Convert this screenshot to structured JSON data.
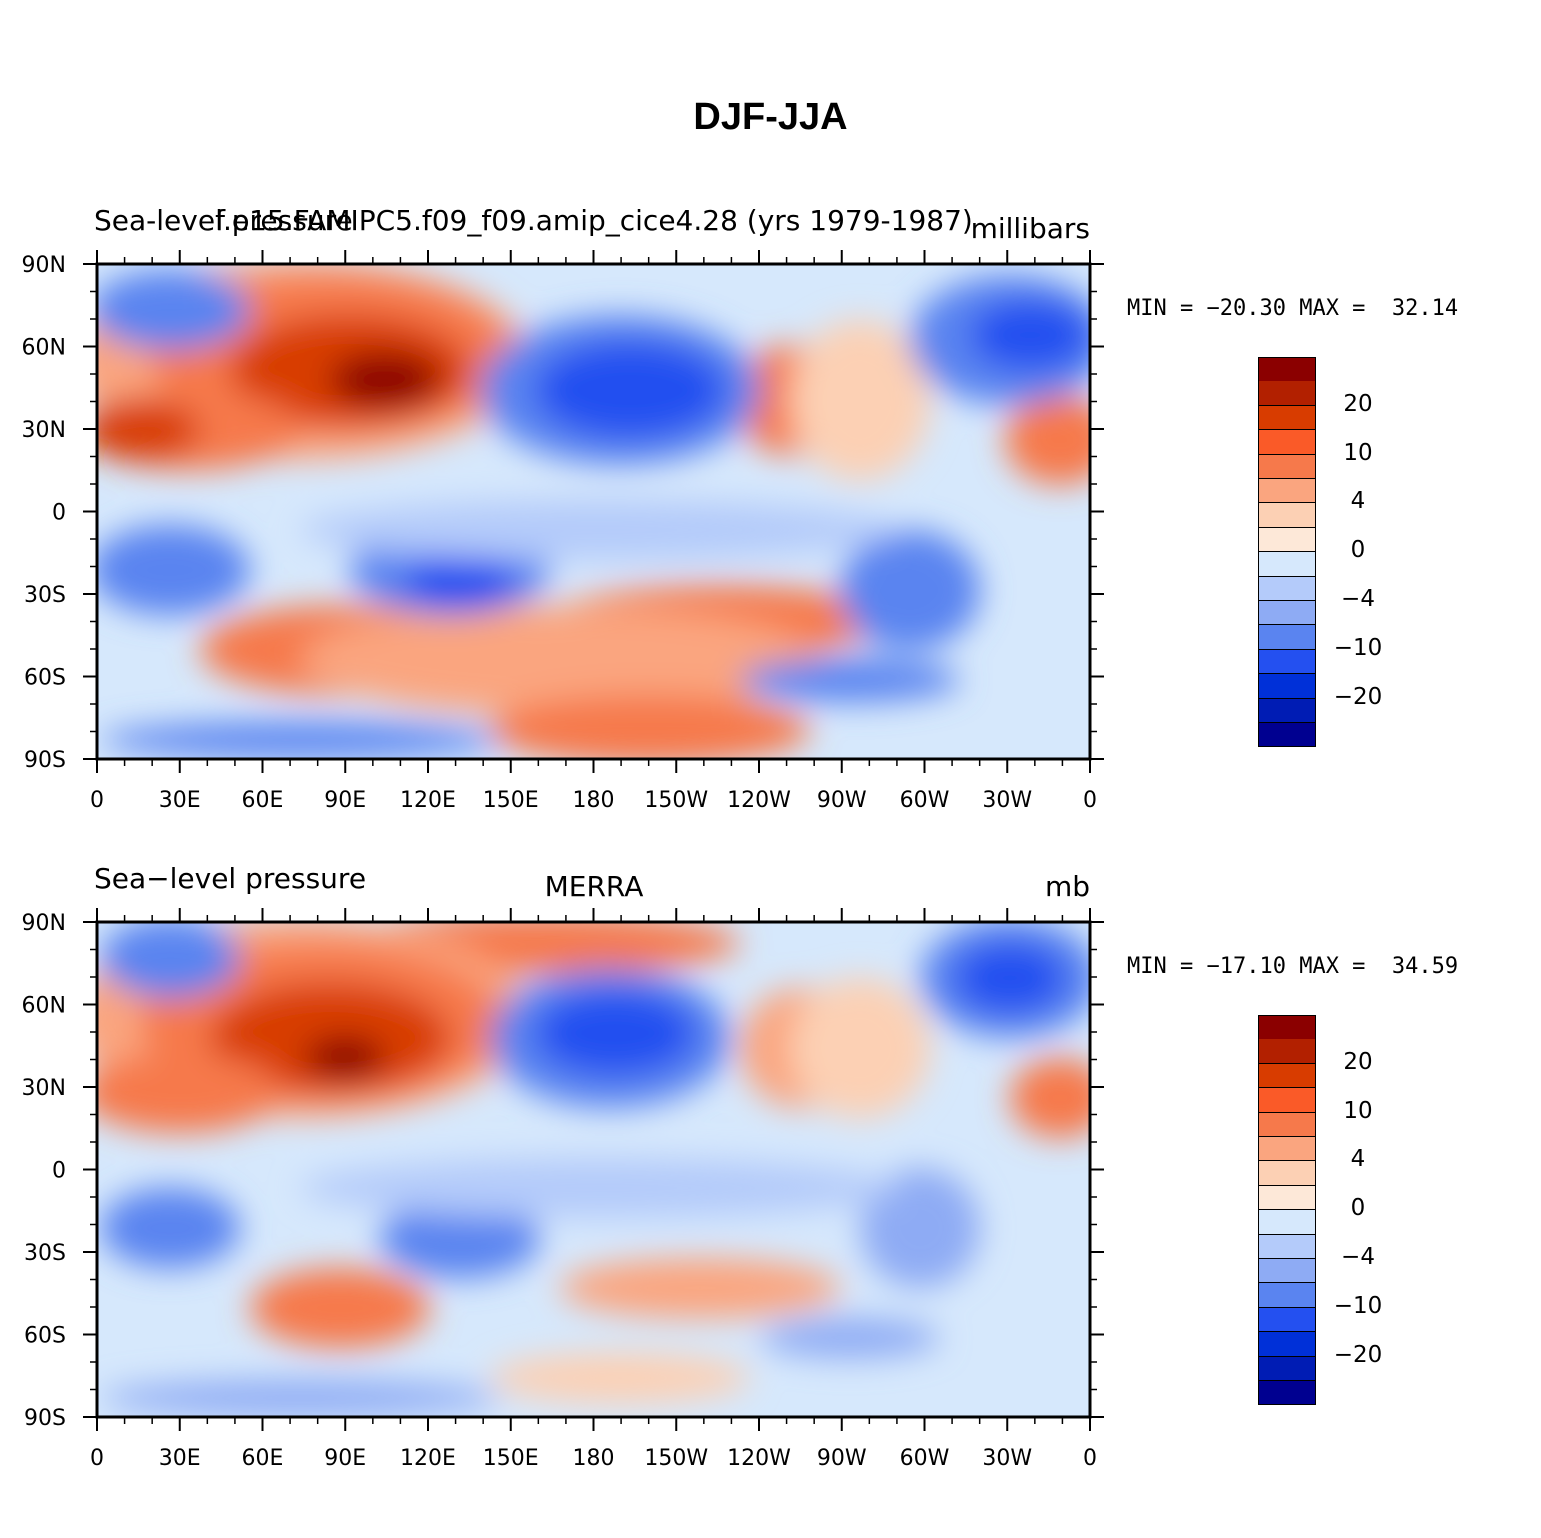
{
  "figure": {
    "title": "DJF-JJA"
  },
  "panels": [
    {
      "left_label": "Sea-level pressure",
      "center_label": "f.e15.FAMIPC5.f09_f09.amip_cice4.28 (yrs 1979-1987)",
      "right_label": "millibars",
      "min_label": "MIN = −20.30",
      "max_label": "MAX =  32.14"
    },
    {
      "left_label": "Sea−level pressure",
      "center_label": "MERRA",
      "right_label": "mb",
      "min_label": "MIN = −17.10",
      "max_label": "MAX =  34.59"
    }
  ],
  "axes": {
    "lat_ticks": [
      "90N",
      "60N",
      "30N",
      "0",
      "30S",
      "60S",
      "90S"
    ],
    "lon_ticks": [
      "0",
      "30E",
      "60E",
      "90E",
      "120E",
      "150E",
      "180",
      "150W",
      "120W",
      "90W",
      "60W",
      "30W",
      "0"
    ]
  },
  "colorbar": {
    "colors": [
      "#8b0000",
      "#b22000",
      "#d83c00",
      "#fa5a28",
      "#f6794b",
      "#faa57f",
      "#fcd0b4",
      "#fde8d8",
      "#d6e8fc",
      "#b4cbfa",
      "#8eabf4",
      "#5a84f0",
      "#2450f0",
      "#0030d8",
      "#001cb4",
      "#000090"
    ],
    "tick_labels": [
      "20",
      "10",
      "4",
      "0",
      "−4",
      "−10",
      "−20"
    ]
  },
  "chart_data": [
    {
      "type": "heatmap",
      "variable": "Sea-level pressure",
      "units": "millibars",
      "source": "f.e15.FAMIPC5.f09_f09.amip_cice4.28 (yrs 1979-1987)",
      "season_difference": "DJF-JJA",
      "xlim": [
        0,
        360
      ],
      "ylim": [
        -90,
        90
      ],
      "min": -20.3,
      "max": 32.14,
      "contour_levels": [
        -30,
        -25,
        -20,
        -15,
        -10,
        -7,
        -4,
        -2,
        0,
        2,
        4,
        7,
        10,
        15,
        20,
        25
      ]
    },
    {
      "type": "heatmap",
      "variable": "Sea-level pressure",
      "units": "mb",
      "source": "MERRA",
      "season_difference": "DJF-JJA",
      "xlim": [
        0,
        360
      ],
      "ylim": [
        -90,
        90
      ],
      "min": -17.1,
      "max": 34.59,
      "contour_levels": [
        -30,
        -25,
        -20,
        -15,
        -10,
        -7,
        -4,
        -2,
        0,
        2,
        4,
        7,
        10,
        15,
        20,
        25
      ]
    }
  ]
}
